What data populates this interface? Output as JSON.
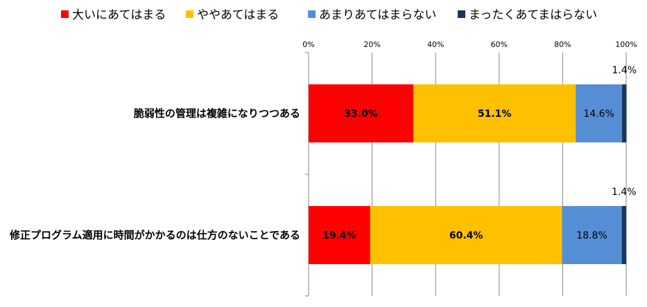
{
  "chart_data": {
    "type": "bar",
    "orientation": "horizontal",
    "stacked": true,
    "percent": true,
    "title": "",
    "xlabel": "",
    "ylabel": "",
    "xlim": [
      0,
      100
    ],
    "x_ticks": [
      "0%",
      "20%",
      "40%",
      "60%",
      "80%",
      "100%"
    ],
    "grid": true,
    "legend_position": "top",
    "categories": [
      "脆弱性の管理は複雑になりつつある",
      "修正プログラム適用に時間がかかるのは仕方のないことである"
    ],
    "series": [
      {
        "name": "大いにあてはまる",
        "color": "#ff0000",
        "label_color": "#000000",
        "values": [
          33.0,
          19.4
        ],
        "labels": [
          "33.0%",
          "19.4%"
        ]
      },
      {
        "name": "ややあてはまる",
        "color": "#ffc000",
        "label_color": "#000000",
        "values": [
          51.1,
          60.4
        ],
        "labels": [
          "51.1%",
          "60.4%"
        ]
      },
      {
        "name": "あまりあてはまらない",
        "color": "#558ed5",
        "label_color": "#000000",
        "values": [
          14.6,
          18.8
        ],
        "labels": [
          "14.6%",
          "18.8%"
        ]
      },
      {
        "name": "まったくあてまはらない",
        "color": "#17375e",
        "label_color": "#000000",
        "values": [
          1.4,
          1.4
        ],
        "labels": [
          "1.4%",
          "1.4%"
        ],
        "label_outside": true
      }
    ]
  }
}
